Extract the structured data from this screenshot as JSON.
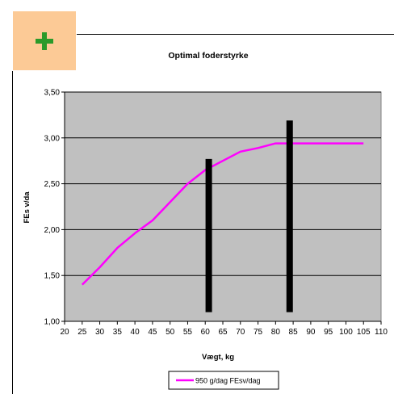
{
  "add_button": {
    "icon": "plus-icon",
    "color": "#2a9a2a",
    "background": "#fcca96"
  },
  "chart_data": {
    "type": "line",
    "title": "Optimal foderstyrke",
    "xlabel": "Vægt, kg",
    "ylabel": "FEs v/da",
    "xlim": [
      20,
      110
    ],
    "ylim": [
      1.0,
      3.5
    ],
    "x_ticks": [
      "20",
      "25",
      "30",
      "35",
      "40",
      "45",
      "50",
      "55",
      "60",
      "65",
      "70",
      "75",
      "80",
      "85",
      "90",
      "95",
      "100",
      "105",
      "110"
    ],
    "y_ticks": [
      "1,00",
      "1,50",
      "2,00",
      "2,50",
      "3,00",
      "3,50"
    ],
    "grid": true,
    "plot_background": "#c0c0c0",
    "legend_position": "bottom",
    "series": [
      {
        "name": "950 g/dag FEsv/dag",
        "color": "#ff00ff",
        "x": [
          25,
          30,
          35,
          40,
          45,
          50,
          55,
          60,
          65,
          70,
          75,
          80,
          85,
          90,
          95,
          100,
          105
        ],
        "y": [
          1.4,
          1.59,
          1.8,
          1.96,
          2.1,
          2.3,
          2.5,
          2.65,
          2.75,
          2.85,
          2.89,
          2.94,
          2.94,
          2.94,
          2.94,
          2.94,
          2.94
        ]
      }
    ],
    "markers": [
      {
        "x": 61,
        "y_from": 1.1,
        "y_to": 2.77,
        "color": "#000000"
      },
      {
        "x": 84,
        "y_from": 1.1,
        "y_to": 3.19,
        "color": "#000000"
      }
    ]
  }
}
